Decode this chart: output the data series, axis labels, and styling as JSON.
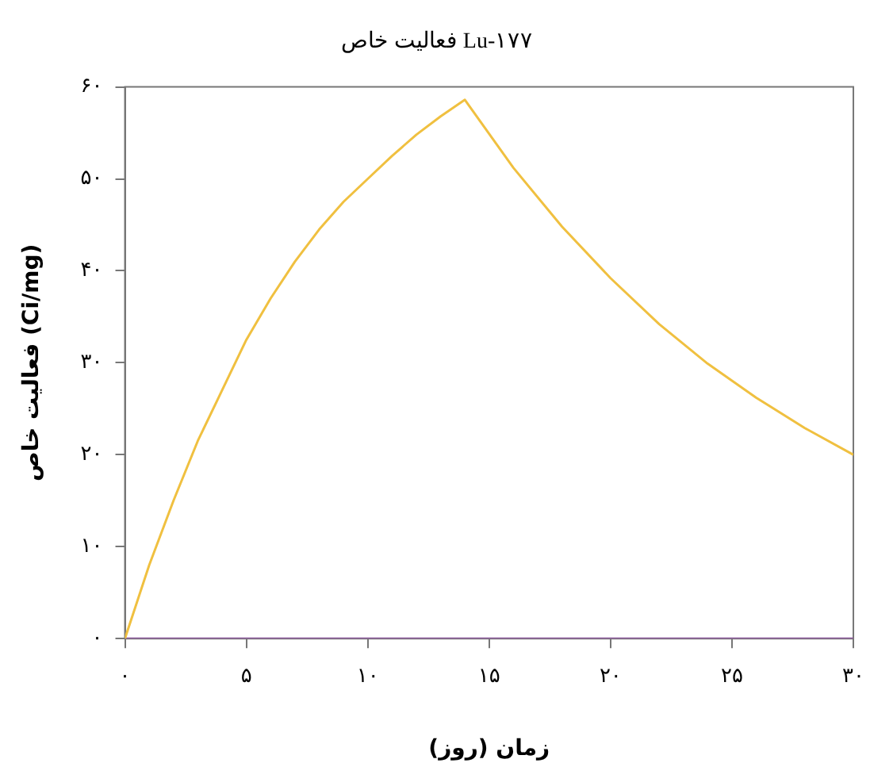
{
  "chart_data": {
    "type": "line",
    "title": "فعالیت خاص Lu-۱۷۷",
    "xlabel": "زمان (روز)",
    "ylabel": "فعالیت خاص (Ci/mg)",
    "xlim": [
      0,
      30
    ],
    "ylim": [
      0,
      60
    ],
    "xticks": [
      {
        "value": 0,
        "label": "۰"
      },
      {
        "value": 5,
        "label": "۵"
      },
      {
        "value": 10,
        "label": "۱۰"
      },
      {
        "value": 15,
        "label": "۱۵"
      },
      {
        "value": 20,
        "label": "۲۰"
      },
      {
        "value": 25,
        "label": "۲۵"
      },
      {
        "value": 30,
        "label": "۳۰"
      }
    ],
    "yticks": [
      {
        "value": 0,
        "label": "۰"
      },
      {
        "value": 10,
        "label": "۱۰"
      },
      {
        "value": 20,
        "label": "۲۰"
      },
      {
        "value": 30,
        "label": "۳۰"
      },
      {
        "value": 40,
        "label": "۴۰"
      },
      {
        "value": 50,
        "label": "۵۰"
      },
      {
        "value": 60,
        "label": "۶۰"
      }
    ],
    "grid": false,
    "legend": false,
    "marker": "none",
    "line_style": "solid",
    "series": [
      {
        "color": "#f0c040",
        "x": [
          0,
          1,
          2,
          3,
          4,
          5,
          6,
          7,
          8,
          9,
          10,
          11,
          12,
          13,
          14,
          16,
          18,
          20,
          22,
          24,
          26,
          28,
          30
        ],
        "values": [
          0,
          8,
          15,
          21.5,
          27,
          32.5,
          37,
          41,
          44.5,
          47.5,
          50,
          52.5,
          54.8,
          56.8,
          58.6,
          51.2,
          44.8,
          39.2,
          34.2,
          29.9,
          26.2,
          22.9,
          20
        ]
      },
      {
        "color": "#8e5c9e",
        "x": [
          0,
          30
        ],
        "values": [
          0,
          0
        ]
      }
    ]
  }
}
